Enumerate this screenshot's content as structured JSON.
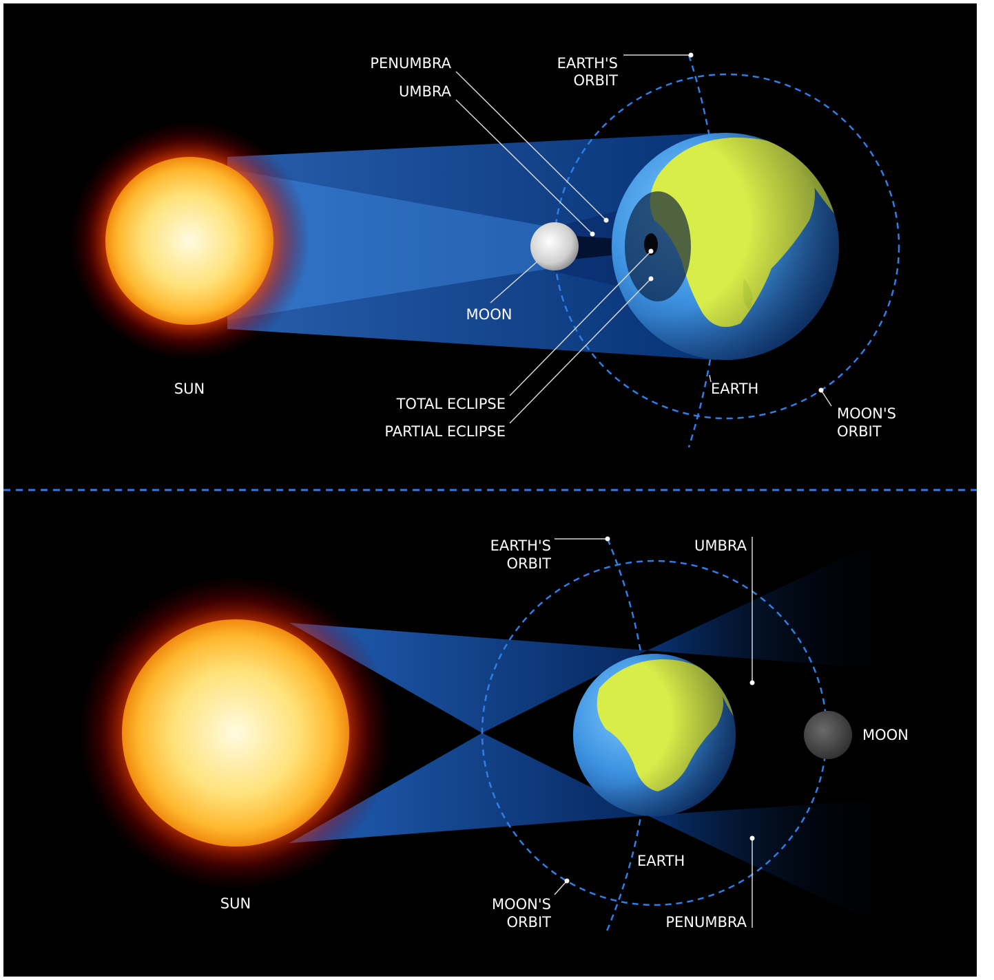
{
  "colors": {
    "background": "#000000",
    "frame": "#ffffff",
    "orbit_dash": "#2f7fe6",
    "divider": "#2f7fe6",
    "light_beam": "#1f6fe0",
    "shadow": "#061a3a",
    "label": "#ffffff",
    "leader": "#d8d8d8"
  },
  "solar_eclipse": {
    "labels": {
      "penumbra": "PENUMBRA",
      "umbra": "UMBRA",
      "earths_orbit_1": "EARTH'S",
      "earths_orbit_2": "ORBIT",
      "moon": "MOON",
      "sun": "SUN",
      "earth": "EARTH",
      "total_eclipse": "TOTAL ECLIPSE",
      "partial_eclipse": "PARTIAL ECLIPSE",
      "moons_orbit_1": "MOON'S",
      "moons_orbit_2": "ORBIT"
    }
  },
  "lunar_eclipse": {
    "labels": {
      "earths_orbit_1": "EARTH'S",
      "earths_orbit_2": "ORBIT",
      "umbra": "UMBRA",
      "moon": "MOON",
      "sun": "SUN",
      "earth": "EARTH",
      "moons_orbit_1": "MOON'S",
      "moons_orbit_2": "ORBIT",
      "penumbra": "PENUMBRA"
    }
  },
  "icons": {
    "sun": "sun-icon",
    "earth": "earth-globe-icon",
    "moon": "moon-icon"
  }
}
